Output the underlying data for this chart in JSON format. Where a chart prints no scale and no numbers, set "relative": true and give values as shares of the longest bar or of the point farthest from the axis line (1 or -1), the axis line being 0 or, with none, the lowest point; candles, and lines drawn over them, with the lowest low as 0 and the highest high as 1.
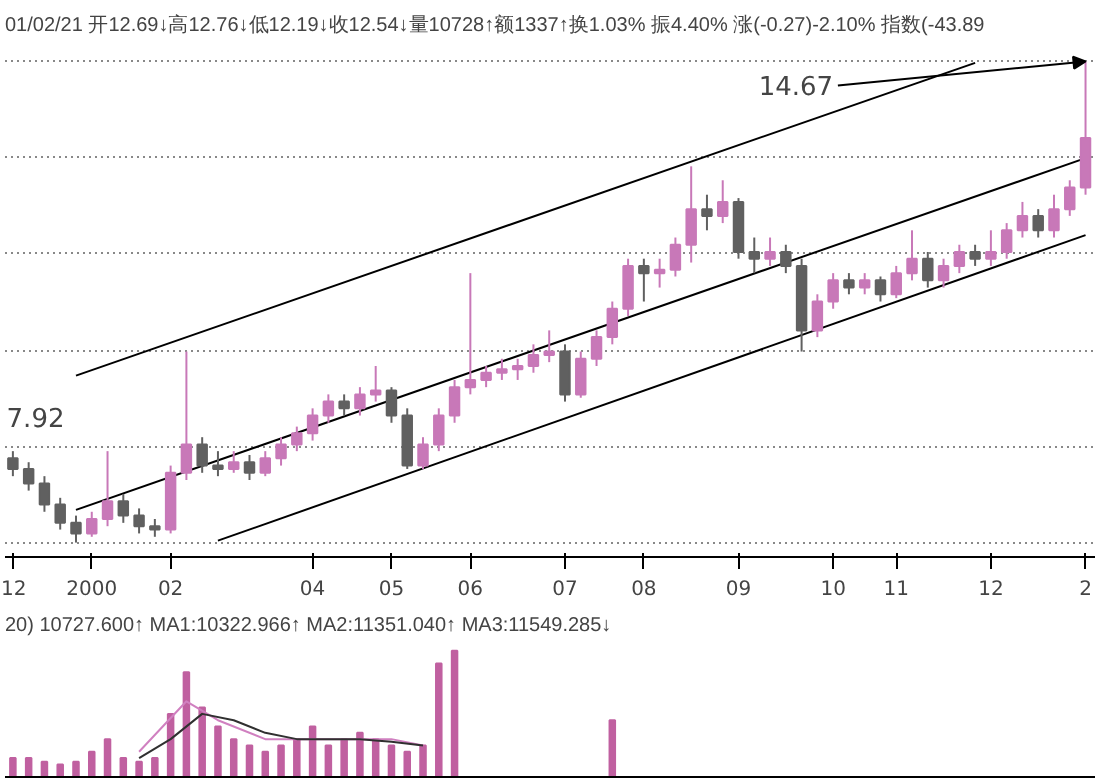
{
  "chart_data": [
    {
      "type": "candlestick",
      "relative": true,
      "title": "01/02/21 开12.69↓高12.76↓低12.19↓收12.54↓量10728↑额1337↑换1.03% 振4.40% 涨(-0.27)-2.10% 指数(-43.89",
      "categories": [
        "12",
        null,
        null,
        null,
        null,
        "2000",
        null,
        null,
        null,
        null,
        "02",
        null,
        null,
        null,
        null,
        null,
        null,
        null,
        null,
        "04",
        null,
        null,
        null,
        null,
        "05",
        null,
        null,
        null,
        null,
        "06",
        null,
        null,
        null,
        null,
        null,
        "07",
        null,
        null,
        null,
        null,
        "08",
        null,
        null,
        null,
        null,
        null,
        "09",
        null,
        null,
        null,
        null,
        null,
        "10",
        null,
        null,
        null,
        "11",
        null,
        null,
        null,
        null,
        null,
        "12",
        null,
        null,
        null,
        null,
        null,
        "2"
      ],
      "ohlc": [
        [
          0.175,
          0.19,
          0.138,
          0.153
        ],
        [
          0.153,
          0.167,
          0.108,
          0.123
        ],
        [
          0.123,
          0.138,
          0.064,
          0.079
        ],
        [
          0.079,
          0.093,
          0.027,
          0.041
        ],
        [
          0.041,
          0.056,
          0,
          0.019
        ],
        [
          0.019,
          0.064,
          0.012,
          0.049
        ],
        [
          0.049,
          0.19,
          0.034,
          0.086
        ],
        [
          0.086,
          0.101,
          0.041,
          0.056
        ],
        [
          0.056,
          0.071,
          0.019,
          0.034
        ],
        [
          0.034,
          0.049,
          0.012,
          0.027
        ],
        [
          0.027,
          0.16,
          0.019,
          0.145
        ],
        [
          0.145,
          0.397,
          0.13,
          0.204
        ],
        [
          0.204,
          0.219,
          0.145,
          0.16
        ],
        [
          0.16,
          0.19,
          0.138,
          0.153
        ],
        [
          0.153,
          0.19,
          0.145,
          0.167
        ],
        [
          0.167,
          0.182,
          0.13,
          0.145
        ],
        [
          0.145,
          0.19,
          0.138,
          0.175
        ],
        [
          0.175,
          0.219,
          0.16,
          0.204
        ],
        [
          0.204,
          0.241,
          0.19,
          0.227
        ],
        [
          0.227,
          0.279,
          0.212,
          0.264
        ],
        [
          0.264,
          0.308,
          0.249,
          0.293
        ],
        [
          0.293,
          0.308,
          0.264,
          0.279
        ],
        [
          0.279,
          0.323,
          0.264,
          0.308
        ],
        [
          0.308,
          0.367,
          0.293,
          0.316
        ],
        [
          0.316,
          0.323,
          0.249,
          0.264
        ],
        [
          0.264,
          0.279,
          0.153,
          0.16
        ],
        [
          0.16,
          0.219,
          0.153,
          0.204
        ],
        [
          0.204,
          0.279,
          0.19,
          0.264
        ],
        [
          0.264,
          0.338,
          0.249,
          0.323
        ],
        [
          0.323,
          0.56,
          0.308,
          0.338
        ],
        [
          0.338,
          0.367,
          0.323,
          0.353
        ],
        [
          0.353,
          0.382,
          0.338,
          0.36
        ],
        [
          0.36,
          0.382,
          0.338,
          0.367
        ],
        [
          0.367,
          0.412,
          0.353,
          0.39
        ],
        [
          0.39,
          0.441,
          0.375,
          0.397
        ],
        [
          0.397,
          0.412,
          0.293,
          0.308
        ],
        [
          0.308,
          0.397,
          0.301,
          0.382
        ],
        [
          0.382,
          0.441,
          0.367,
          0.427
        ],
        [
          0.427,
          0.501,
          0.412,
          0.486
        ],
        [
          0.486,
          0.59,
          0.471,
          0.575
        ],
        [
          0.575,
          0.59,
          0.501,
          0.56
        ],
        [
          0.56,
          0.59,
          0.53,
          0.567
        ],
        [
          0.567,
          0.634,
          0.553,
          0.619
        ],
        [
          0.619,
          0.782,
          0.582,
          0.693
        ],
        [
          0.693,
          0.723,
          0.649,
          0.679
        ],
        [
          0.679,
          0.753,
          0.664,
          0.708
        ],
        [
          0.708,
          0.716,
          0.59,
          0.604
        ],
        [
          0.604,
          0.634,
          0.56,
          0.59
        ],
        [
          0.59,
          0.634,
          0.575,
          0.604
        ],
        [
          0.604,
          0.619,
          0.56,
          0.575
        ],
        [
          0.575,
          0.59,
          0.397,
          0.441
        ],
        [
          0.441,
          0.516,
          0.427,
          0.501
        ],
        [
          0.501,
          0.56,
          0.486,
          0.545
        ],
        [
          0.545,
          0.56,
          0.516,
          0.53
        ],
        [
          0.53,
          0.56,
          0.516,
          0.545
        ],
        [
          0.545,
          0.553,
          0.501,
          0.516
        ],
        [
          0.516,
          0.575,
          0.508,
          0.56
        ],
        [
          0.56,
          0.649,
          0.545,
          0.59
        ],
        [
          0.59,
          0.604,
          0.53,
          0.545
        ],
        [
          0.545,
          0.59,
          0.53,
          0.575
        ],
        [
          0.575,
          0.619,
          0.56,
          0.604
        ],
        [
          0.604,
          0.619,
          0.575,
          0.59
        ],
        [
          0.59,
          0.649,
          0.575,
          0.604
        ],
        [
          0.604,
          0.664,
          0.59,
          0.649
        ],
        [
          0.649,
          0.708,
          0.634,
          0.679
        ],
        [
          0.679,
          0.693,
          0.634,
          0.649
        ],
        [
          0.649,
          0.723,
          0.634,
          0.693
        ],
        [
          0.693,
          0.753,
          0.679,
          0.738
        ],
        [
          0.738,
          1,
          0.723,
          0.841
        ]
      ],
      "colors": [
        "#606060",
        "#606060",
        "#606060",
        "#606060",
        "#606060",
        "#c878b8",
        "#c878b8",
        "#606060",
        "#606060",
        "#606060",
        "#c878b8",
        "#c878b8",
        "#606060",
        "#606060",
        "#c878b8",
        "#606060",
        "#c878b8",
        "#c878b8",
        "#c878b8",
        "#c878b8",
        "#c878b8",
        "#606060",
        "#c878b8",
        "#c878b8",
        "#606060",
        "#606060",
        "#c878b8",
        "#c878b8",
        "#c878b8",
        "#c878b8",
        "#c878b8",
        "#c878b8",
        "#c878b8",
        "#c878b8",
        "#c878b8",
        "#606060",
        "#c878b8",
        "#c878b8",
        "#c878b8",
        "#c878b8",
        "#606060",
        "#c878b8",
        "#c878b8",
        "#c878b8",
        "#606060",
        "#c878b8",
        "#606060",
        "#606060",
        "#c878b8",
        "#606060",
        "#606060",
        "#c878b8",
        "#c878b8",
        "#606060",
        "#c878b8",
        "#606060",
        "#c878b8",
        "#c878b8",
        "#606060",
        "#c878b8",
        "#c878b8",
        "#606060",
        "#c878b8",
        "#c878b8",
        "#c878b8",
        "#606060",
        "#c878b8",
        "#c878b8",
        "#c878b8"
      ],
      "series": [
        {
          "type": "line",
          "color": "#000000",
          "values": [
            null,
            null,
            null,
            null,
            0.347,
            null,
            null,
            null,
            null,
            null,
            null,
            null,
            null,
            null,
            null,
            null,
            null,
            null,
            null,
            null,
            null,
            null,
            null,
            null,
            null,
            null,
            null,
            null,
            null,
            null,
            null,
            null,
            null,
            null,
            null,
            null,
            null,
            null,
            null,
            null,
            null,
            null,
            null,
            null,
            null,
            null,
            null,
            null,
            null,
            null,
            null,
            null,
            null,
            null,
            null,
            null,
            null,
            null,
            null,
            null,
            null,
            0.997,
            null,
            null,
            null,
            null,
            null,
            null,
            null
          ]
        },
        {
          "type": "line",
          "color": "#000000",
          "values": [
            null,
            null,
            null,
            null,
            0.068,
            null,
            null,
            null,
            null,
            null,
            null,
            null,
            null,
            null,
            null,
            null,
            null,
            null,
            null,
            null,
            null,
            null,
            null,
            null,
            null,
            null,
            null,
            null,
            null,
            null,
            null,
            null,
            null,
            null,
            null,
            null,
            null,
            null,
            null,
            null,
            null,
            null,
            null,
            null,
            null,
            null,
            null,
            null,
            null,
            null,
            null,
            null,
            null,
            null,
            null,
            null,
            null,
            null,
            null,
            null,
            null,
            null,
            null,
            null,
            null,
            null,
            null,
            null,
            0.799
          ]
        },
        {
          "type": "line",
          "color": "#000000",
          "values": [
            null,
            null,
            null,
            null,
            null,
            null,
            null,
            null,
            null,
            null,
            null,
            null,
            null,
            0.004,
            null,
            null,
            null,
            null,
            null,
            null,
            null,
            null,
            null,
            null,
            null,
            null,
            null,
            null,
            null,
            null,
            null,
            null,
            null,
            null,
            null,
            null,
            null,
            null,
            null,
            null,
            null,
            null,
            null,
            null,
            null,
            null,
            null,
            null,
            null,
            null,
            null,
            null,
            null,
            null,
            null,
            null,
            null,
            null,
            null,
            null,
            null,
            null,
            null,
            null,
            null,
            null,
            null,
            null,
            0.639
          ]
        }
      ],
      "grid": "y",
      "tick_labels": "x",
      "annotations": [
        "7.92",
        {
          "text": "14.67",
          "x": "2",
          "y": 1
        }
      ]
    },
    {
      "type": "bar",
      "title": "20) 10727.600↑ MA1:10322.966↑ MA2:11351.040↑ MA3:11549.285↓",
      "relative": true,
      "tick_labels": false,
      "categories": [
        null,
        null,
        null,
        null,
        null,
        null,
        null,
        null,
        null,
        null,
        null,
        null,
        null,
        null,
        null,
        null,
        null,
        null,
        null,
        null,
        null,
        null,
        null,
        null,
        null,
        null,
        null,
        null,
        null,
        null,
        null,
        null,
        null,
        null,
        null,
        null,
        null,
        null,
        null,
        null,
        null,
        null,
        null,
        null,
        null,
        null,
        null,
        null,
        null,
        null,
        null,
        null,
        null,
        null,
        null,
        null,
        null,
        null,
        null,
        null,
        null,
        null,
        null,
        null,
        null,
        null,
        null,
        null,
        null
      ],
      "series": [
        {
          "type": "bar",
          "color": "#c060a0",
          "values": [
            0.15,
            0.15,
            0.12,
            0.1,
            0.12,
            0.2,
            0.3,
            0.15,
            0.12,
            0.15,
            0.5,
            0.83,
            0.55,
            0.4,
            0.3,
            0.25,
            0.2,
            0.25,
            0.3,
            0.4,
            0.25,
            0.3,
            0.35,
            0.3,
            0.25,
            0.2,
            0.25,
            0.9,
            1.0,
            null,
            null,
            null,
            null,
            null,
            null,
            null,
            null,
            null,
            0.45,
            null,
            null,
            null,
            null,
            null,
            null,
            null,
            null,
            null,
            null,
            null,
            null,
            null,
            null,
            null,
            null,
            null,
            null,
            null,
            null,
            null,
            null,
            null,
            null,
            null,
            null,
            null,
            null,
            null,
            null
          ]
        },
        {
          "type": "line",
          "color": "#d080c0",
          "values": [
            null,
            null,
            null,
            null,
            null,
            null,
            null,
            null,
            0.2,
            null,
            null,
            0.6,
            null,
            0.45,
            null,
            null,
            0.3,
            null,
            null,
            null,
            0.3,
            null,
            null,
            null,
            0.3,
            null,
            0.25,
            null,
            null,
            null,
            null,
            null,
            null,
            null,
            null,
            null,
            null,
            null,
            null,
            null,
            null,
            null,
            null,
            null,
            null,
            null,
            null,
            null,
            null,
            null,
            null,
            null,
            null,
            null,
            null,
            null,
            null,
            null,
            null,
            null,
            null,
            null,
            null,
            null,
            null,
            null,
            null,
            null,
            null
          ]
        },
        {
          "type": "line",
          "color": "#303030",
          "values": [
            null,
            null,
            null,
            null,
            null,
            null,
            null,
            null,
            0.15,
            null,
            0.3,
            null,
            0.5,
            null,
            0.45,
            null,
            0.35,
            null,
            0.3,
            null,
            0.3,
            null,
            0.3,
            null,
            0.28,
            null,
            0.25,
            null,
            null,
            null,
            null,
            null,
            null,
            null,
            null,
            null,
            null,
            null,
            null,
            null,
            null,
            null,
            null,
            null,
            null,
            null,
            null,
            null,
            null,
            null,
            null,
            null,
            null,
            null,
            null,
            null,
            null,
            null,
            null,
            null,
            null,
            null,
            null,
            null,
            null,
            null,
            null,
            null,
            null
          ]
        }
      ]
    }
  ]
}
